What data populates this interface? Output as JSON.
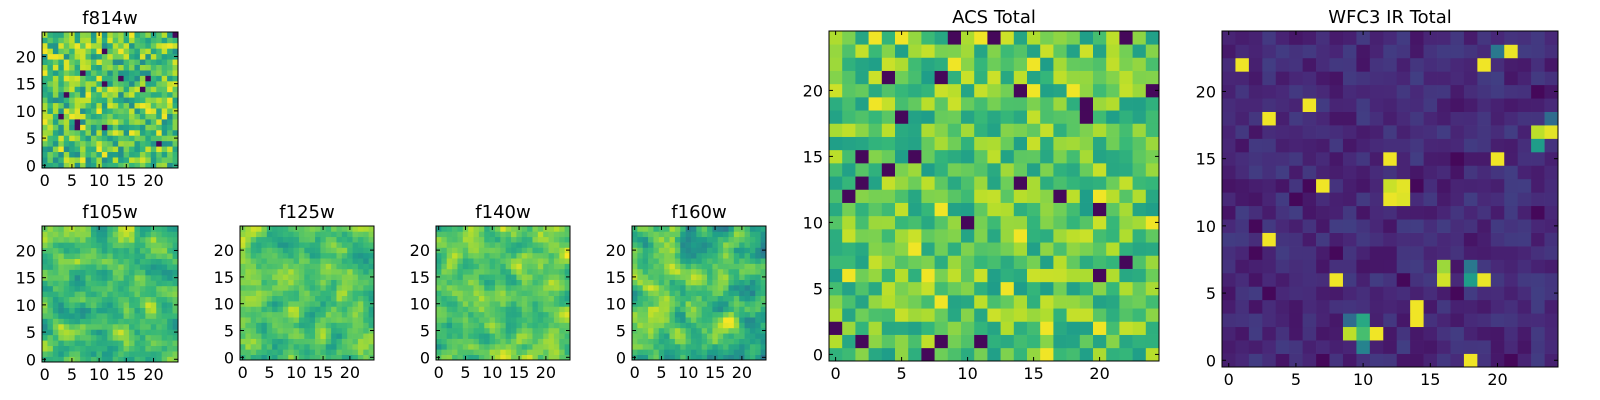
{
  "figure": {
    "colormap": "viridis",
    "colormap_stops": [
      "#440154",
      "#482878",
      "#3e4989",
      "#31688e",
      "#26828e",
      "#1f9e89",
      "#35b779",
      "#6ece58",
      "#b5de2b",
      "#fde725"
    ]
  },
  "chart_data": [
    {
      "type": "heatmap",
      "title": "f814w",
      "shape": [
        25,
        25
      ],
      "xticks": [
        0,
        5,
        10,
        15,
        20
      ],
      "yticks": [
        0,
        5,
        10,
        15,
        20
      ],
      "xlim": [
        -0.5,
        24.5
      ],
      "ylim": [
        -0.5,
        24.5
      ],
      "value_range": [
        0,
        1
      ],
      "pattern": "uniform_noise",
      "mean": 0.72,
      "spread": 0.25,
      "seed": 11,
      "hotspots": []
    },
    {
      "type": "heatmap",
      "title": "f105w",
      "shape": [
        25,
        25
      ],
      "xticks": [
        0,
        5,
        10,
        15,
        20
      ],
      "yticks": [
        0,
        5,
        10,
        15,
        20
      ],
      "xlim": [
        -0.5,
        24.5
      ],
      "ylim": [
        -0.5,
        24.5
      ],
      "value_range": [
        0,
        1
      ],
      "pattern": "smooth_noise",
      "mean": 0.7,
      "spread": 0.22,
      "seed": 23,
      "hotspots": []
    },
    {
      "type": "heatmap",
      "title": "f125w",
      "shape": [
        25,
        25
      ],
      "xticks": [
        0,
        5,
        10,
        15,
        20
      ],
      "yticks": [
        0,
        5,
        10,
        15,
        20
      ],
      "xlim": [
        -0.5,
        24.5
      ],
      "ylim": [
        -0.5,
        24.5
      ],
      "value_range": [
        0,
        1
      ],
      "pattern": "smooth_noise",
      "mean": 0.72,
      "spread": 0.2,
      "seed": 37,
      "hotspots": []
    },
    {
      "type": "heatmap",
      "title": "f140w",
      "shape": [
        25,
        25
      ],
      "xticks": [
        0,
        5,
        10,
        15,
        20
      ],
      "yticks": [
        0,
        5,
        10,
        15,
        20
      ],
      "xlim": [
        -0.5,
        24.5
      ],
      "ylim": [
        -0.5,
        24.5
      ],
      "value_range": [
        0,
        1
      ],
      "pattern": "smooth_noise",
      "mean": 0.74,
      "spread": 0.2,
      "seed": 41,
      "hotspots": []
    },
    {
      "type": "heatmap",
      "title": "f160w",
      "shape": [
        25,
        25
      ],
      "xticks": [
        0,
        5,
        10,
        15,
        20
      ],
      "yticks": [
        0,
        5,
        10,
        15,
        20
      ],
      "xlim": [
        -0.5,
        24.5
      ],
      "ylim": [
        -0.5,
        24.5
      ],
      "value_range": [
        0,
        1
      ],
      "pattern": "smooth_noise",
      "mean": 0.7,
      "spread": 0.24,
      "seed": 53,
      "hotspots": []
    },
    {
      "type": "heatmap",
      "title": "ACS Total",
      "shape": [
        25,
        25
      ],
      "xticks": [
        0,
        5,
        10,
        15,
        20
      ],
      "yticks": [
        0,
        5,
        10,
        15,
        20
      ],
      "xlim": [
        -0.5,
        24.5
      ],
      "ylim": [
        -0.5,
        24.5
      ],
      "value_range": [
        0,
        1
      ],
      "pattern": "uniform_noise",
      "mean": 0.74,
      "spread": 0.2,
      "seed": 67,
      "hotspots": []
    },
    {
      "type": "heatmap",
      "title": "WFC3 IR Total",
      "shape": [
        25,
        25
      ],
      "xticks": [
        0,
        5,
        10,
        15,
        20
      ],
      "yticks": [
        0,
        5,
        10,
        15,
        20
      ],
      "xlim": [
        -0.5,
        24.5
      ],
      "ylim": [
        -0.5,
        24.5
      ],
      "value_range": [
        0,
        1
      ],
      "pattern": "uniform_noise",
      "mean": 0.12,
      "spread": 0.07,
      "seed": 79,
      "hotspots": [
        {
          "col": 21,
          "row": 23,
          "value": 0.97
        },
        {
          "col": 20,
          "row": 23,
          "value": 0.4
        },
        {
          "col": 24,
          "row": 17,
          "value": 0.96
        },
        {
          "col": 23,
          "row": 17,
          "value": 0.9
        },
        {
          "col": 23,
          "row": 16,
          "value": 0.55
        },
        {
          "col": 24,
          "row": 18,
          "value": 0.35
        },
        {
          "col": 12,
          "row": 12,
          "value": 0.97
        },
        {
          "col": 13,
          "row": 12,
          "value": 0.95
        },
        {
          "col": 12,
          "row": 13,
          "value": 0.92
        },
        {
          "col": 13,
          "row": 13,
          "value": 0.96
        },
        {
          "col": 16,
          "row": 7,
          "value": 0.85
        },
        {
          "col": 16,
          "row": 6,
          "value": 0.93
        },
        {
          "col": 18,
          "row": 7,
          "value": 0.4
        },
        {
          "col": 18,
          "row": 6,
          "value": 0.55
        },
        {
          "col": 19,
          "row": 6,
          "value": 0.97
        },
        {
          "col": 9,
          "row": 2,
          "value": 0.9
        },
        {
          "col": 10,
          "row": 2,
          "value": 0.7
        },
        {
          "col": 10,
          "row": 3,
          "value": 0.6
        },
        {
          "col": 9,
          "row": 3,
          "value": 0.35
        },
        {
          "col": 10,
          "row": 1,
          "value": 0.45
        }
      ]
    }
  ]
}
